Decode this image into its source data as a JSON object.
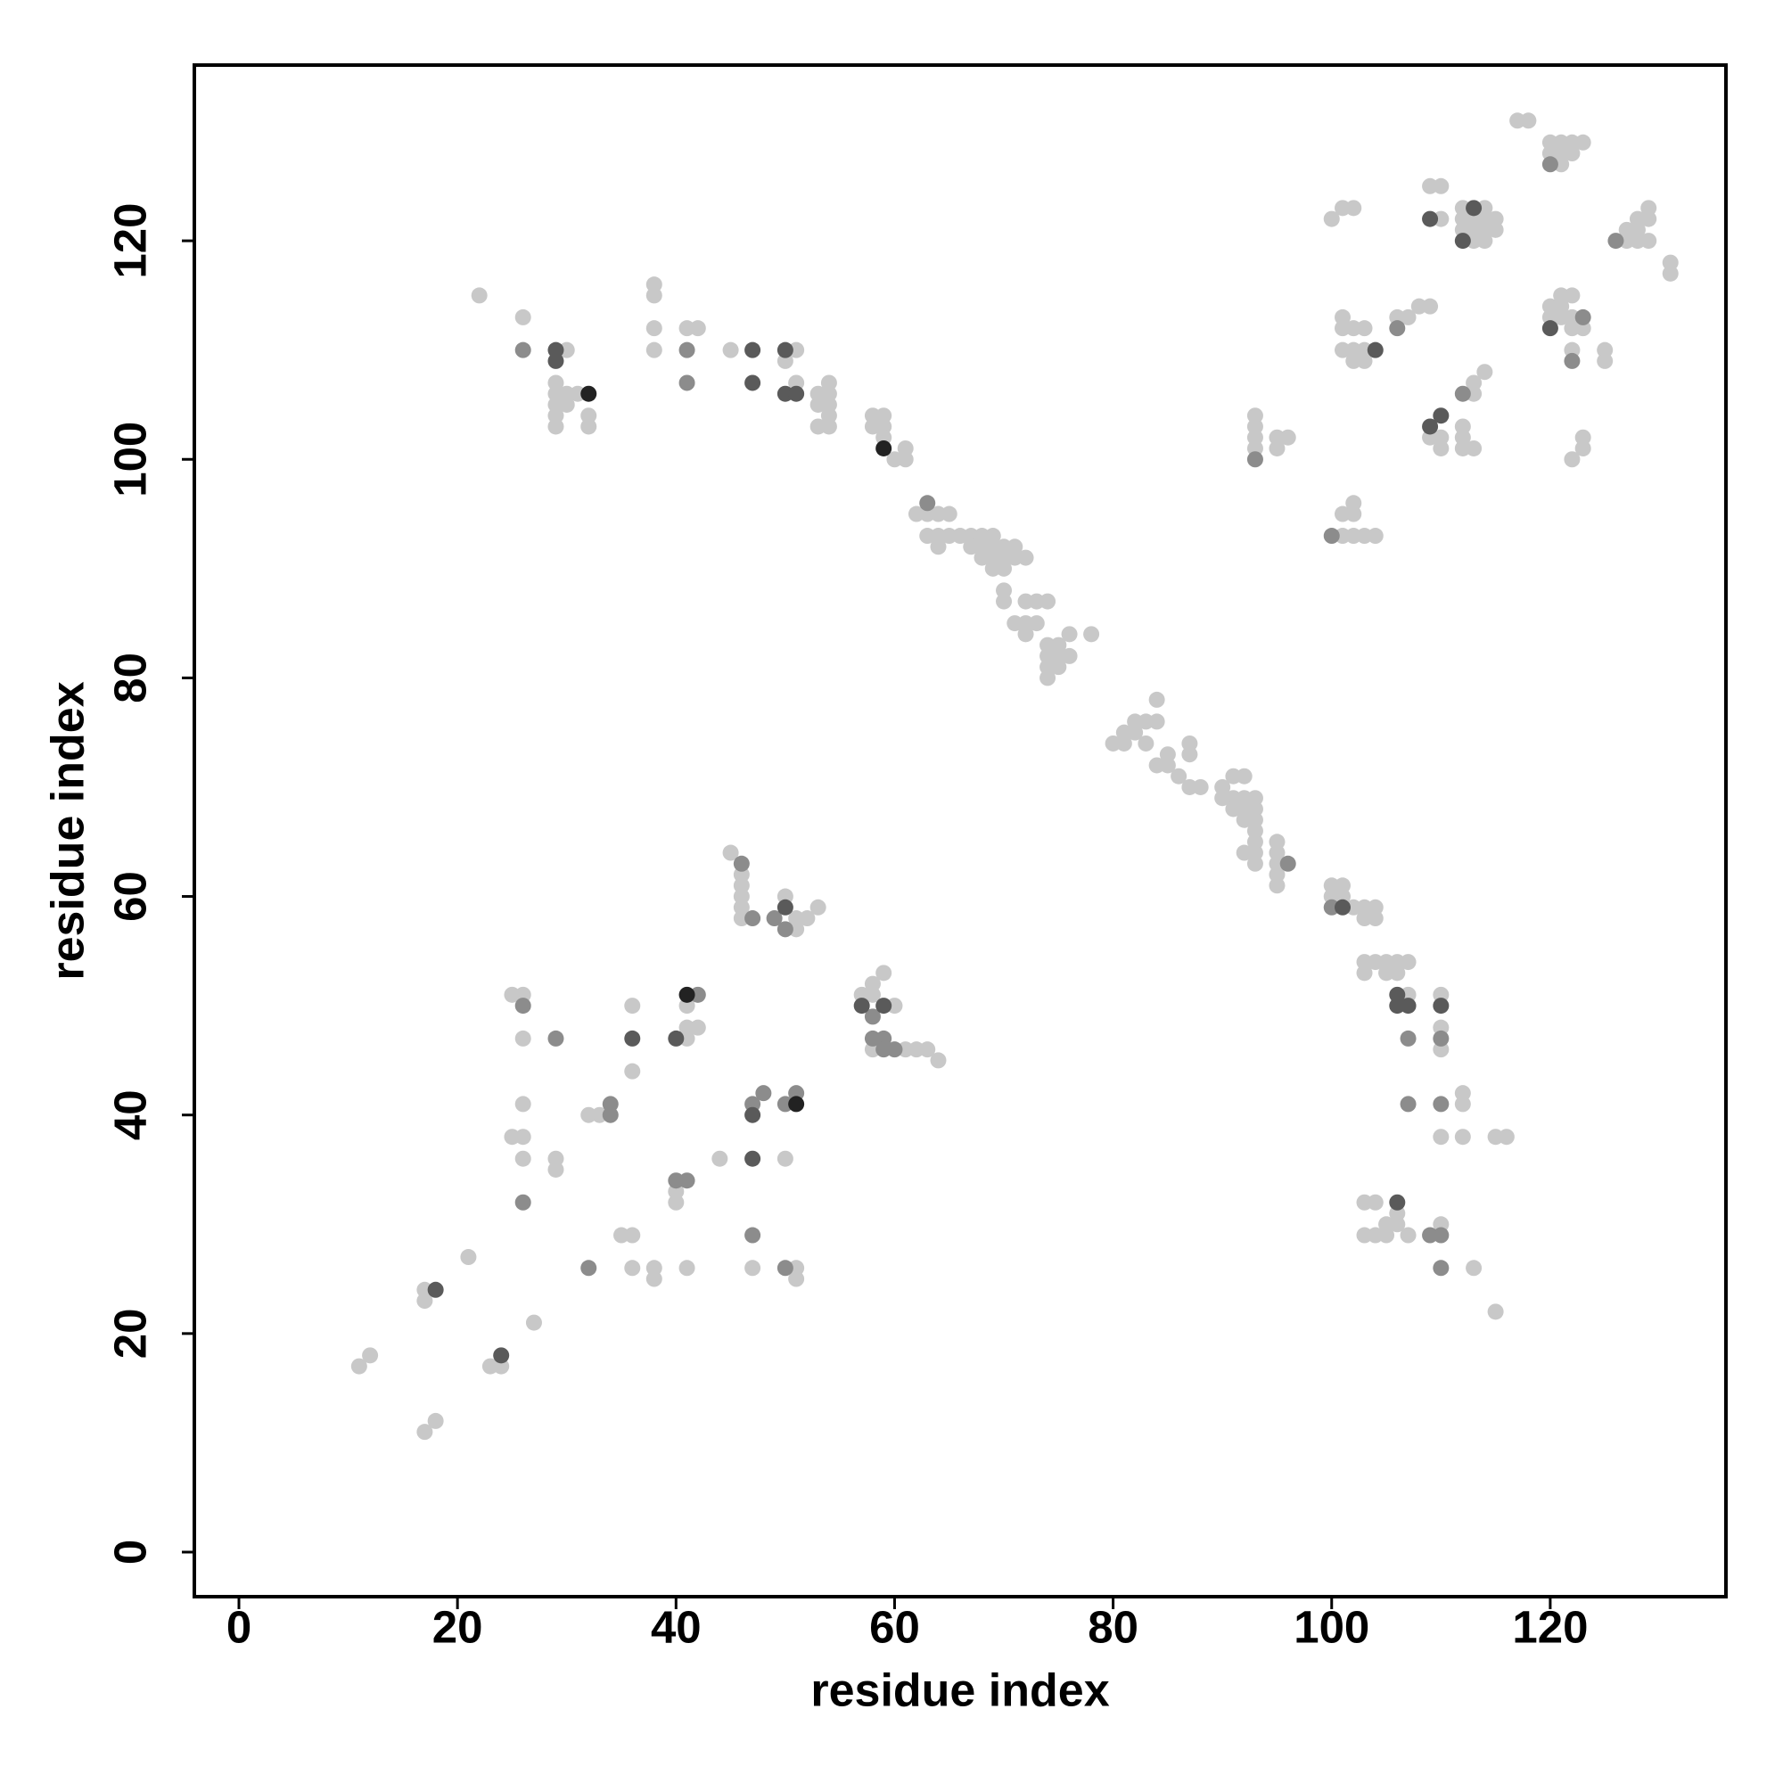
{
  "chart_data": {
    "type": "scatter",
    "xlabel": "residue index",
    "ylabel": "residue index",
    "xlim": [
      -4.08,
      136.08
    ],
    "ylim": [
      -4.08,
      136.08
    ],
    "xticks": [
      0,
      20,
      40,
      60,
      80,
      100,
      120
    ],
    "yticks": [
      0,
      20,
      40,
      60,
      80,
      100,
      120
    ],
    "series": [
      {
        "color": "#c8c8c8",
        "x": [
          11,
          12,
          17,
          18,
          17,
          17,
          21,
          23,
          24,
          27,
          22,
          26,
          30,
          29,
          29,
          29,
          29,
          29,
          30,
          30,
          31,
          32,
          32,
          38,
          38,
          38,
          38,
          41,
          42,
          45,
          50,
          51,
          51,
          53,
          53,
          53,
          54,
          54,
          54,
          54,
          54,
          58,
          58,
          59,
          59,
          59,
          60,
          61,
          61,
          62,
          63,
          64,
          65,
          63,
          64,
          65,
          66,
          67,
          68,
          69,
          64,
          67,
          68,
          69,
          70,
          71,
          68,
          69,
          70,
          71,
          72,
          69,
          70,
          70,
          70,
          72,
          73,
          74,
          71,
          72,
          73,
          72,
          74,
          75,
          76,
          74,
          75,
          76,
          74,
          75,
          74,
          78,
          80,
          81,
          82,
          82,
          83,
          84,
          81,
          83,
          84,
          85,
          85,
          86,
          84,
          87,
          87,
          87,
          88,
          90,
          90,
          91,
          92,
          91,
          92,
          93,
          91,
          92,
          93,
          92,
          93,
          93,
          93,
          92,
          93,
          93,
          95,
          95,
          95,
          95,
          95,
          100,
          101,
          100,
          101,
          102,
          103,
          104,
          103,
          104,
          103,
          104,
          105,
          106,
          107,
          103,
          105,
          106,
          107,
          110,
          110,
          110,
          112,
          112,
          110,
          112,
          115,
          116,
          103,
          104,
          103,
          104,
          105,
          105,
          106,
          106,
          107,
          110,
          113,
          115,
          45,
          46,
          46,
          46,
          46,
          46,
          50,
          51,
          51,
          52,
          53,
          57,
          58,
          58,
          59,
          60,
          58,
          61,
          62,
          63,
          64,
          25,
          26,
          26,
          26,
          25,
          26,
          26,
          29,
          29,
          32,
          33,
          36,
          36,
          41,
          41,
          41,
          42,
          40,
          40,
          44,
          50,
          47,
          51,
          51,
          35,
          36,
          36,
          38,
          38,
          41,
          117,
          118,
          120,
          121,
          122,
          123,
          120,
          121,
          122,
          121,
          100,
          101,
          102,
          109,
          110,
          110,
          112,
          114,
          112,
          113,
          114,
          115,
          112,
          113,
          114,
          115,
          113,
          114,
          127,
          128,
          129,
          129,
          128,
          127,
          128,
          129,
          131,
          131,
          101,
          101,
          102,
          103,
          101,
          102,
          102,
          103,
          103,
          106,
          107,
          108,
          109,
          120,
          121,
          121,
          122,
          120,
          121,
          122,
          122,
          123,
          122,
          125,
          125,
          113,
          114,
          113,
          93,
          93,
          93,
          93,
          95,
          96,
          95,
          109,
          110,
          110,
          112,
          112,
          112,
          113,
          123,
          123,
          122,
          101,
          102,
          103,
          104,
          101,
          102,
          102
        ],
        "y": [
          17,
          18,
          11,
          12,
          23,
          24,
          27,
          17,
          17,
          21,
          115,
          113,
          110,
          107,
          106,
          105,
          104,
          103,
          106,
          105,
          106,
          104,
          103,
          116,
          115,
          112,
          110,
          112,
          112,
          110,
          109,
          110,
          107,
          106,
          105,
          103,
          107,
          106,
          105,
          104,
          103,
          104,
          103,
          104,
          103,
          102,
          100,
          100,
          101,
          95,
          95,
          95,
          95,
          93,
          93,
          93,
          93,
          93,
          93,
          93,
          92,
          92,
          92,
          92,
          92,
          92,
          91,
          91,
          91,
          91,
          91,
          90,
          90,
          88,
          87,
          87,
          87,
          87,
          85,
          85,
          85,
          84,
          83,
          83,
          84,
          82,
          82,
          82,
          81,
          81,
          80,
          84,
          74,
          75,
          75,
          76,
          76,
          76,
          74,
          74,
          78,
          73,
          72,
          71,
          72,
          74,
          73,
          70,
          70,
          70,
          69,
          71,
          71,
          69,
          69,
          69,
          68,
          68,
          68,
          67,
          67,
          66,
          65,
          64,
          64,
          63,
          65,
          64,
          63,
          62,
          61,
          61,
          61,
          60,
          60,
          59,
          59,
          59,
          58,
          58,
          54,
          54,
          54,
          54,
          54,
          53,
          53,
          53,
          51,
          51,
          48,
          46,
          41,
          42,
          38,
          38,
          38,
          38,
          32,
          32,
          29,
          29,
          29,
          30,
          30,
          31,
          29,
          30,
          26,
          22,
          64,
          62,
          61,
          60,
          59,
          58,
          60,
          57,
          58,
          58,
          59,
          51,
          51,
          52,
          53,
          50,
          46,
          46,
          46,
          46,
          45,
          51,
          51,
          47,
          41,
          38,
          38,
          36,
          36,
          35,
          40,
          40,
          50,
          44,
          50,
          48,
          47,
          48,
          33,
          32,
          36,
          36,
          26,
          26,
          25,
          29,
          29,
          26,
          26,
          25,
          26,
          131,
          131,
          129,
          129,
          129,
          129,
          128,
          128,
          128,
          127,
          122,
          123,
          123,
          125,
          125,
          122,
          123,
          123,
          122,
          122,
          122,
          122,
          121,
          121,
          121,
          121,
          120,
          120,
          121,
          121,
          122,
          123,
          122,
          120,
          120,
          120,
          118,
          117,
          113,
          112,
          112,
          112,
          110,
          110,
          109,
          109,
          110,
          113,
          113,
          114,
          114,
          114,
          114,
          115,
          115,
          113,
          113,
          113,
          112,
          112,
          110,
          110,
          109,
          107,
          108,
          106,
          104,
          103,
          102,
          101,
          102,
          102,
          101,
          102,
          102,
          101,
          103,
          102,
          101,
          101,
          102,
          101,
          100,
          93,
          93,
          93,
          93,
          95,
          95,
          96
        ]
      },
      {
        "color": "#8c8c8c",
        "x": [
          26,
          41,
          41,
          63,
          96,
          100,
          107,
          110,
          107,
          110,
          109,
          110,
          110,
          46,
          47,
          49,
          50,
          58,
          58,
          59,
          59,
          60,
          26,
          29,
          26,
          34,
          34,
          42,
          40,
          41,
          47,
          48,
          50,
          51,
          47,
          50,
          32,
          120,
          126,
          106,
          123,
          122,
          112,
          93,
          100
        ],
        "y": [
          110,
          110,
          107,
          96,
          63,
          59,
          47,
          47,
          41,
          41,
          29,
          29,
          26,
          63,
          58,
          58,
          57,
          49,
          47,
          47,
          46,
          46,
          50,
          47,
          32,
          41,
          40,
          51,
          34,
          34,
          41,
          42,
          41,
          42,
          29,
          26,
          26,
          127,
          120,
          112,
          113,
          109,
          106,
          100,
          93
        ]
      },
      {
        "color": "#5a5a5a",
        "x": [
          29,
          29,
          47,
          50,
          47,
          50,
          51,
          106,
          106,
          107,
          110,
          106,
          50,
          57,
          59,
          36,
          40,
          47,
          47,
          18,
          24,
          109,
          113,
          112,
          104,
          109,
          110,
          101,
          120
        ],
        "y": [
          110,
          109,
          110,
          110,
          107,
          106,
          106,
          51,
          50,
          50,
          50,
          32,
          59,
          50,
          50,
          47,
          47,
          40,
          36,
          24,
          18,
          122,
          123,
          120,
          110,
          103,
          104,
          59,
          112
        ]
      },
      {
        "color": "#222222",
        "x": [
          32,
          59,
          41,
          51
        ],
        "y": [
          106,
          101,
          51,
          41
        ]
      }
    ]
  }
}
